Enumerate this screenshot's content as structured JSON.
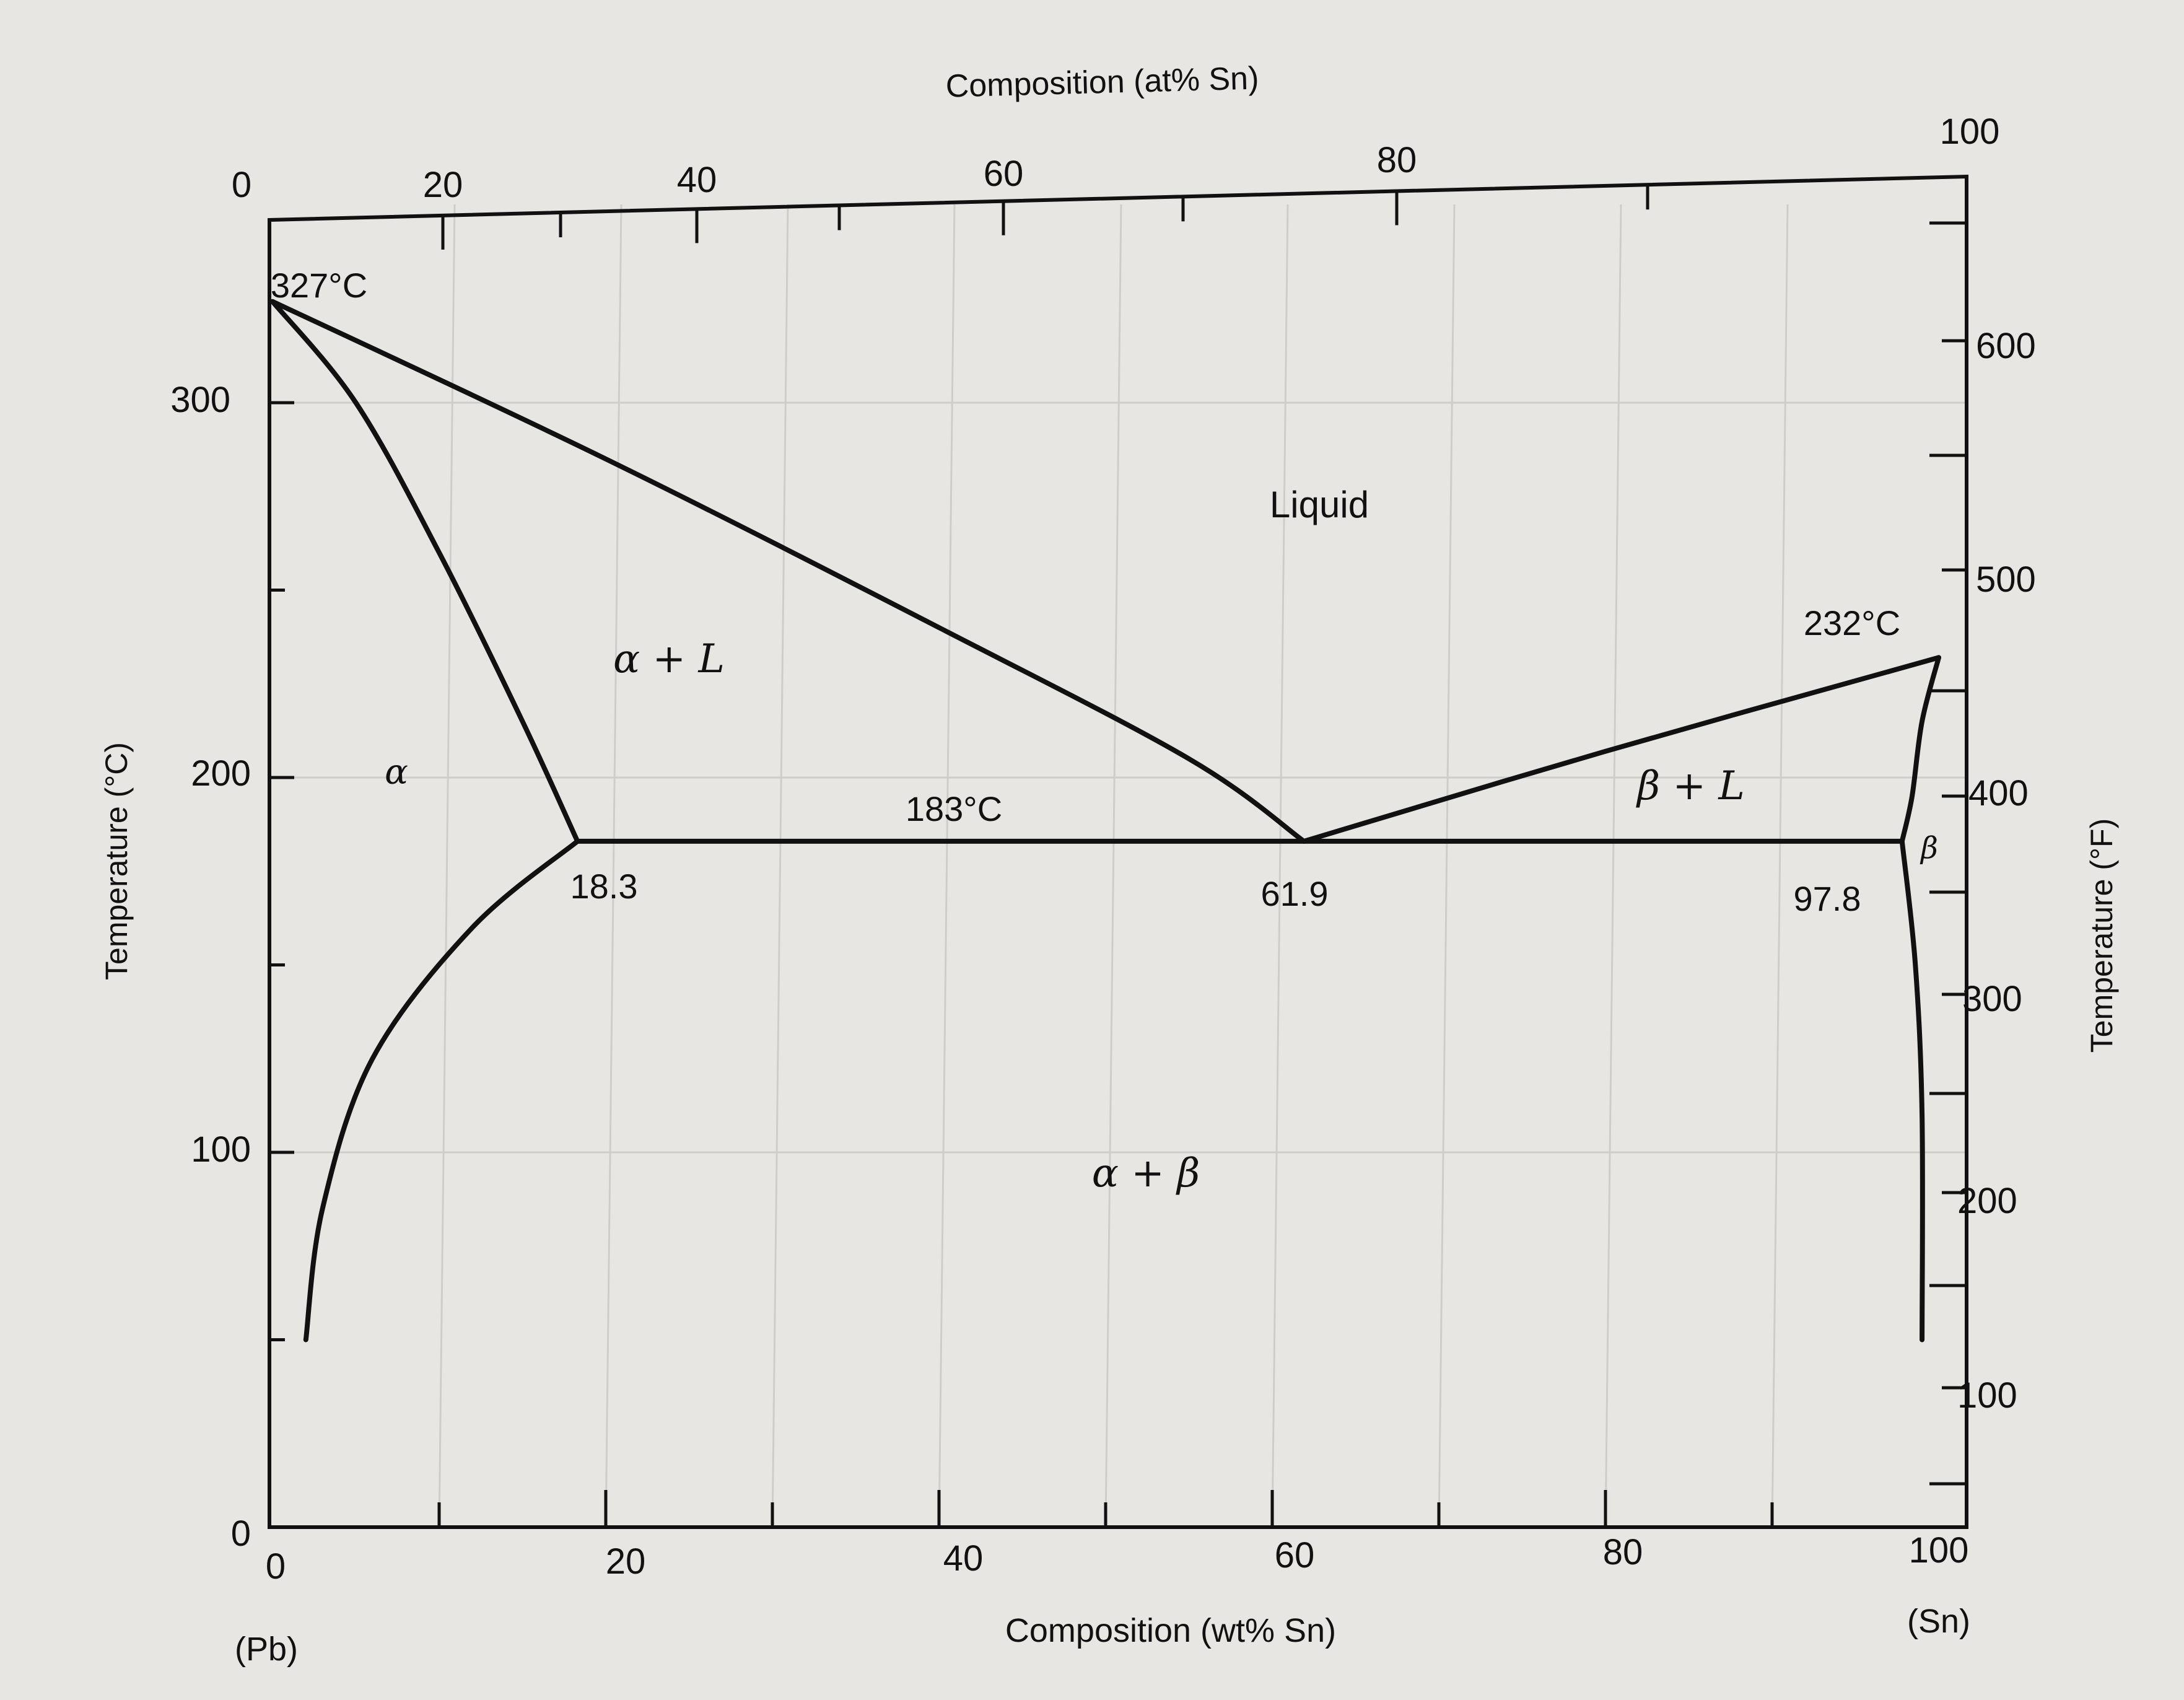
{
  "chart_data": {
    "type": "phase-diagram",
    "top_axis": {
      "label": "Composition (at% Sn)",
      "ticks": [
        "0",
        "20",
        "40",
        "60",
        "80",
        "100"
      ]
    },
    "bottom_axis": {
      "label": "Composition (wt% Sn)",
      "ticks": [
        "0",
        "20",
        "40",
        "60",
        "80",
        "100"
      ],
      "range": [
        0,
        100
      ],
      "left_end": "(Pb)",
      "right_end": "(Sn)"
    },
    "left_axis": {
      "label": "Temperature (°C)",
      "ticks": [
        "0",
        "100",
        "200",
        "300"
      ],
      "range": [
        0,
        350
      ]
    },
    "right_axis": {
      "label": "Temperature (°F)",
      "ticks": [
        "100",
        "200",
        "300",
        "400",
        "500",
        "600"
      ]
    },
    "phase_labels": {
      "liquid": "Liquid",
      "alpha_plus_l": "α + L",
      "alpha": "α",
      "beta_plus_l": "β + L",
      "beta": "β",
      "alpha_plus_beta": "α + β"
    },
    "annotations": {
      "pb_melting": "327°C",
      "sn_melting": "232°C",
      "eutectic_temp": "183°C",
      "alpha_max_solubility": "18.3",
      "eutectic_comp": "61.9",
      "beta_max_solubility": "97.8"
    },
    "key_points": {
      "pb_melting": {
        "wt_sn": 0,
        "temp_c": 327
      },
      "sn_melting": {
        "wt_sn": 100,
        "temp_c": 232
      },
      "eutectic": {
        "wt_sn": 61.9,
        "temp_c": 183
      },
      "alpha_max": {
        "wt_sn": 18.3,
        "temp_c": 183
      },
      "beta_max": {
        "wt_sn": 97.8,
        "temp_c": 183
      }
    },
    "curves": {
      "liquidus_left": [
        [
          0,
          327
        ],
        [
          20,
          285
        ],
        [
          40,
          240
        ],
        [
          55,
          205
        ],
        [
          61.9,
          183
        ]
      ],
      "liquidus_right": [
        [
          61.9,
          183
        ],
        [
          80,
          207
        ],
        [
          100,
          232
        ]
      ],
      "solidus_left": [
        [
          0,
          327
        ],
        [
          5,
          300
        ],
        [
          10,
          260
        ],
        [
          15,
          215
        ],
        [
          18.3,
          183
        ]
      ],
      "solvus_left": [
        [
          18.3,
          183
        ],
        [
          12,
          160
        ],
        [
          6,
          125
        ],
        [
          3,
          85
        ],
        [
          2,
          50
        ]
      ],
      "beta_solidus": [
        [
          100,
          232
        ],
        [
          99,
          215
        ],
        [
          98.4,
          195
        ],
        [
          97.8,
          183
        ]
      ],
      "beta_solvus": [
        [
          97.8,
          183
        ],
        [
          98.6,
          150
        ],
        [
          99,
          110
        ],
        [
          99,
          50
        ]
      ],
      "eutectic_line": [
        [
          18.3,
          183
        ],
        [
          97.8,
          183
        ]
      ]
    }
  }
}
